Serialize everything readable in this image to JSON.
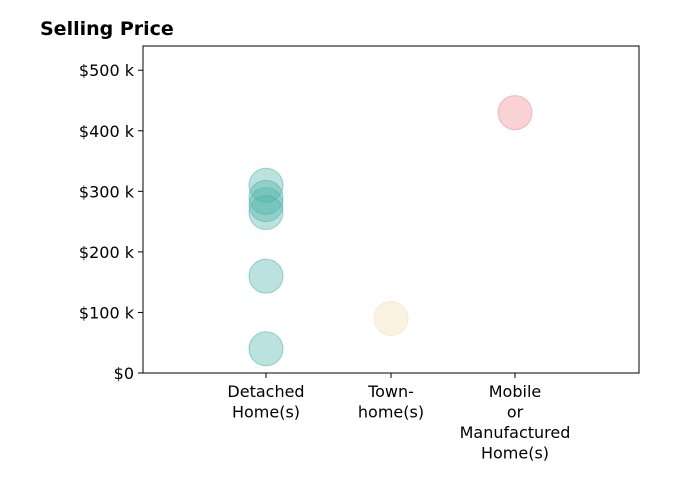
{
  "chart_data": {
    "type": "scatter",
    "title": "Selling Price",
    "xlabel": "",
    "ylabel": "",
    "categories": [
      [
        "Detached",
        "Home(s)"
      ],
      [
        "Town-",
        "home(s)"
      ],
      [
        "Mobile",
        "or",
        "Manufactured",
        "Home(s)"
      ]
    ],
    "ylim": [
      0,
      540000
    ],
    "yticks": [
      0,
      100000,
      200000,
      300000,
      400000,
      500000
    ],
    "ytick_labels": [
      "$0",
      "$100 k",
      "$200 k",
      "$300 k",
      "$400 k",
      "$500 k"
    ],
    "grid": false,
    "series": [
      {
        "color": "#4db3a8",
        "category_index": 0,
        "values": [
          310000,
          290000,
          278000,
          265000,
          160000,
          40000
        ]
      },
      {
        "color": "#f5deb0",
        "category_index": 1,
        "values": [
          90000
        ]
      },
      {
        "color": "#f08a94",
        "category_index": 2,
        "values": [
          430000
        ]
      }
    ]
  }
}
